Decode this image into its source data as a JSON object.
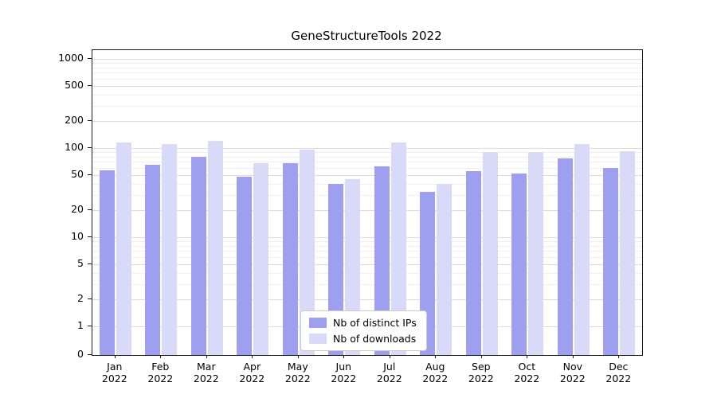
{
  "chart_data": {
    "type": "bar",
    "title": "GeneStructureTools 2022",
    "categories": [
      "Jan",
      "Feb",
      "Mar",
      "Apr",
      "May",
      "Jun",
      "Jul",
      "Aug",
      "Sep",
      "Oct",
      "Nov",
      "Dec"
    ],
    "year_label": "2022",
    "series": [
      {
        "name": "Nb of distinct IPs",
        "color": "#9f9ff0",
        "values": [
          56,
          65,
          80,
          48,
          68,
          40,
          62,
          32,
          55,
          52,
          76,
          60
        ]
      },
      {
        "name": "Nb of downloads",
        "color": "#d9d9f8",
        "values": [
          115,
          110,
          120,
          68,
          97,
          45,
          115,
          40,
          90,
          90,
          110,
          92
        ]
      }
    ],
    "yticks": [
      0,
      1,
      2,
      5,
      10,
      20,
      50,
      100,
      200,
      500,
      1000
    ],
    "yscale": "symlog",
    "ylim": [
      0,
      1000
    ],
    "grid": true,
    "legend_position": "lower center"
  }
}
